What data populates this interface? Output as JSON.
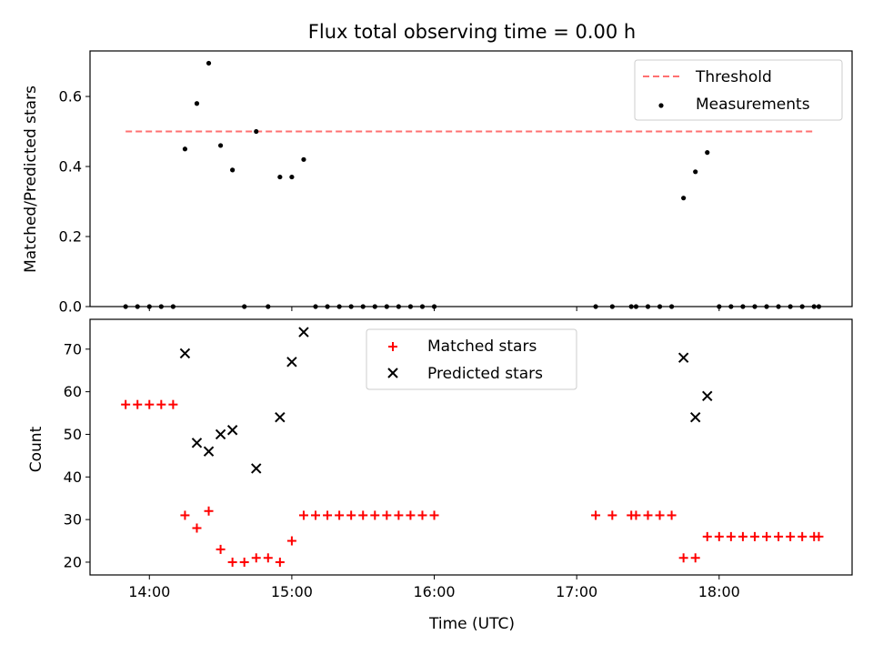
{
  "title": "Flux total observing time = 0.00 h",
  "colors": {
    "threshold": "#ff7070",
    "measurement": "#000000",
    "matched": "#ff0000",
    "predicted": "#000000"
  },
  "chart_data": [
    {
      "type": "scatter",
      "ylabel": "Matched/Predicted stars",
      "ylim": [
        0,
        0.73
      ],
      "yticks": [
        "0.0",
        "0.2",
        "0.4",
        "0.6"
      ],
      "xticks": [
        "14:00",
        "15:00",
        "16:00",
        "17:00",
        "18:00"
      ],
      "legend": "top-right",
      "series": [
        {
          "name": "Threshold",
          "kind": "line",
          "style": "dashed",
          "x": [
            "13:50",
            "18:40"
          ],
          "y": [
            0.5,
            0.5
          ]
        },
        {
          "name": "Measurements",
          "kind": "scatter",
          "marker": "dot",
          "x": [
            "13:50",
            "13:55",
            "14:00",
            "14:05",
            "14:10",
            "14:15",
            "14:20",
            "14:25",
            "14:30",
            "14:35",
            "14:40",
            "14:45",
            "14:50",
            "14:55",
            "15:00",
            "15:05",
            "15:10",
            "15:15",
            "15:20",
            "15:25",
            "15:30",
            "15:35",
            "15:40",
            "15:45",
            "15:50",
            "15:55",
            "16:00",
            "17:08",
            "17:15",
            "17:23",
            "17:25",
            "17:30",
            "17:35",
            "17:40",
            "17:45",
            "17:50",
            "17:55",
            "18:00",
            "18:05",
            "18:10",
            "18:15",
            "18:20",
            "18:25",
            "18:30",
            "18:35",
            "18:40",
            "18:42"
          ],
          "y": [
            0,
            0,
            0,
            0,
            0,
            0.45,
            0.58,
            0.695,
            0.46,
            0.39,
            0,
            0.5,
            0,
            0.37,
            0.37,
            0.42,
            0,
            0,
            0,
            0,
            0,
            0,
            0,
            0,
            0,
            0,
            0,
            0,
            0,
            0,
            0,
            0,
            0,
            0,
            0.31,
            0.385,
            0.44,
            0,
            0,
            0,
            0,
            0,
            0,
            0,
            0,
            0,
            0
          ]
        }
      ]
    },
    {
      "type": "scatter",
      "xlabel": "Time (UTC)",
      "ylabel": "Count",
      "ylim": [
        17,
        77
      ],
      "yticks": [
        "20",
        "30",
        "40",
        "50",
        "60",
        "70"
      ],
      "xticks": [
        "14:00",
        "15:00",
        "16:00",
        "17:00",
        "18:00"
      ],
      "legend": "top-center",
      "series": [
        {
          "name": "Matched stars",
          "kind": "scatter",
          "marker": "plus",
          "x": [
            "13:50",
            "13:55",
            "14:00",
            "14:05",
            "14:10",
            "14:15",
            "14:20",
            "14:25",
            "14:30",
            "14:35",
            "14:40",
            "14:45",
            "14:50",
            "14:55",
            "15:00",
            "15:05",
            "15:10",
            "15:15",
            "15:20",
            "15:25",
            "15:30",
            "15:35",
            "15:40",
            "15:45",
            "15:50",
            "15:55",
            "16:00",
            "17:08",
            "17:15",
            "17:23",
            "17:25",
            "17:30",
            "17:35",
            "17:40",
            "17:45",
            "17:50",
            "17:55",
            "18:00",
            "18:05",
            "18:10",
            "18:15",
            "18:20",
            "18:25",
            "18:30",
            "18:35",
            "18:40",
            "18:42"
          ],
          "y": [
            57,
            57,
            57,
            57,
            57,
            31,
            28,
            32,
            23,
            20,
            20,
            21,
            21,
            20,
            25,
            31,
            31,
            31,
            31,
            31,
            31,
            31,
            31,
            31,
            31,
            31,
            31,
            31,
            31,
            31,
            31,
            31,
            31,
            31,
            21,
            21,
            26,
            26,
            26,
            26,
            26,
            26,
            26,
            26,
            26,
            26,
            26
          ]
        },
        {
          "name": "Predicted stars",
          "kind": "scatter",
          "marker": "x",
          "x": [
            "14:15",
            "14:20",
            "14:25",
            "14:30",
            "14:35",
            "14:45",
            "14:55",
            "15:00",
            "15:05",
            "17:45",
            "17:50",
            "17:55"
          ],
          "y": [
            69,
            48,
            46,
            50,
            51,
            42,
            54,
            67,
            74,
            68,
            54,
            59
          ]
        }
      ]
    }
  ]
}
